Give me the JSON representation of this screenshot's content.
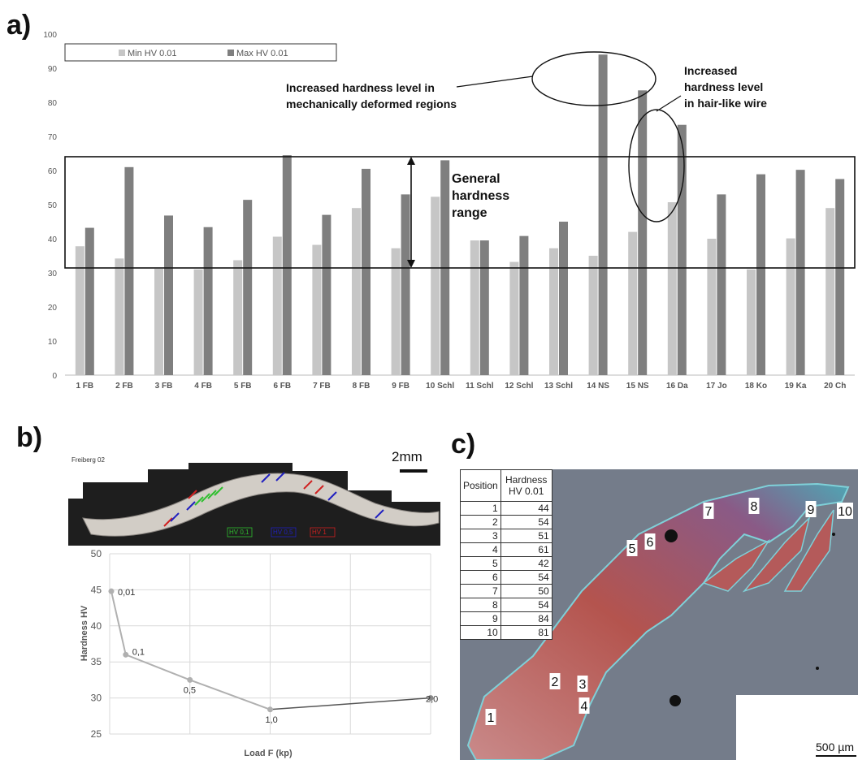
{
  "panels": {
    "a": "a)",
    "b": "b)",
    "c": "c)"
  },
  "chart_data": [
    {
      "type": "bar",
      "panel": "a)",
      "categories": [
        "1 FB",
        "2 FB",
        "3 FB",
        "4 FB",
        "5 FB",
        "6 FB",
        "7 FB",
        "8 FB",
        "9 FB",
        "10 Schl",
        "11 Schl",
        "12 Schl",
        "13 Schl",
        "14 NS",
        "15 NS",
        "16 Da",
        "17 Jo",
        "18 Ko",
        "19 Ka",
        "20 Ch"
      ],
      "series": [
        {
          "name": "Min HV 0.01",
          "color": "#c6c6c6",
          "values": [
            37.8,
            34.2,
            31.2,
            31.0,
            33.7,
            40.6,
            38.2,
            49.0,
            37.2,
            52.3,
            39.5,
            33.2,
            37.2,
            35.0,
            42.0,
            50.7,
            40.0,
            31.0,
            40.1,
            49.0
          ]
        },
        {
          "name": "Max HV 0.01",
          "color": "#7f7f7f",
          "values": [
            43.2,
            61.0,
            46.8,
            43.4,
            51.4,
            64.5,
            47.0,
            60.5,
            53.0,
            63.0,
            39.5,
            40.8,
            45.0,
            94.0,
            83.5,
            73.4,
            53.0,
            58.9,
            60.2,
            57.5
          ]
        }
      ],
      "yticks": [
        "0",
        "10",
        "20",
        "30",
        "40",
        "50",
        "60",
        "70",
        "80",
        "90",
        "100"
      ],
      "ylim": [
        0,
        100
      ],
      "legend_position": "top-left",
      "grid": false,
      "annotations": {
        "general_range": [
          "General",
          "hardness",
          "range"
        ],
        "deformed": [
          "Increased hardness level in",
          "mechanically deformed regions"
        ],
        "wire": [
          "Increased",
          "hardness level",
          "in hair-like wire"
        ]
      }
    },
    {
      "type": "line",
      "panel": "b)",
      "x": [
        0.01,
        0.1,
        0.5,
        1.0,
        2.0
      ],
      "y": [
        44.8,
        36.0,
        32.5,
        28.4,
        30.0
      ],
      "point_labels": [
        "0,01",
        "0,1",
        "0,5",
        "1,0",
        "2,0"
      ],
      "ylabel": "Hardness HV",
      "xlabel": "Load F (kp)",
      "yticks": [
        "25",
        "30",
        "35",
        "40",
        "45",
        "50"
      ],
      "ylim": [
        25,
        50
      ],
      "grid": true
    },
    {
      "type": "table",
      "panel": "c)",
      "columns": [
        "Position",
        "Hardness HV 0.01"
      ],
      "rows": [
        [
          "1",
          "44"
        ],
        [
          "2",
          "54"
        ],
        [
          "3",
          "51"
        ],
        [
          "4",
          "61"
        ],
        [
          "5",
          "42"
        ],
        [
          "6",
          "54"
        ],
        [
          "7",
          "50"
        ],
        [
          "8",
          "54"
        ],
        [
          "9",
          "84"
        ],
        [
          "10",
          "81"
        ]
      ]
    }
  ],
  "panel_b_image": {
    "caption": "Freiberg 02",
    "scale": "2mm",
    "legend": [
      "HV 0,1",
      "HV 0,5",
      "HV 1"
    ],
    "legend_colors": [
      "#2fbf2f",
      "#2020c0",
      "#d02020"
    ]
  },
  "panel_c_image": {
    "scale": "500 µm",
    "markers": [
      "1",
      "2",
      "3",
      "4",
      "5",
      "6",
      "7",
      "8",
      "9",
      "10"
    ]
  }
}
